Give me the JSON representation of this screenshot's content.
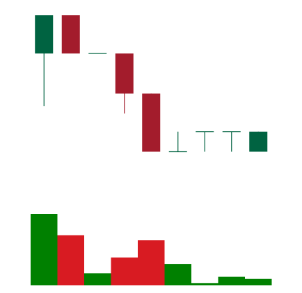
{
  "chart_data": {
    "type": "candlestick",
    "title": "",
    "xlabel": "",
    "ylabel": "",
    "grid": false,
    "legend": "none",
    "ylim": [
      0,
      100
    ],
    "volume_ylim": [
      0,
      100
    ],
    "colors": {
      "up": "#006341",
      "down": "#a31c2c",
      "volume_up": "#008000",
      "volume_down": "#d81b22",
      "background": "#ffffff"
    },
    "candles": [
      {
        "open": 79,
        "high": 100,
        "low": 50,
        "close": 100,
        "volume": 100
      },
      {
        "open": 100,
        "high": 100,
        "low": 79,
        "close": 79,
        "volume": 70
      },
      {
        "open": 79,
        "high": 79,
        "low": 79,
        "close": 79,
        "volume": 17
      },
      {
        "open": 79,
        "high": 79,
        "low": 46,
        "close": 57,
        "volume": 39
      },
      {
        "open": 57,
        "high": 57,
        "low": 25,
        "close": 25,
        "volume": 63
      },
      {
        "open": 25,
        "high": 36,
        "low": 25,
        "close": 25,
        "volume": 30
      },
      {
        "open": 36,
        "high": 36,
        "low": 25,
        "close": 36,
        "volume": 3
      },
      {
        "open": 36,
        "high": 36,
        "low": 25,
        "close": 36,
        "volume": 12
      },
      {
        "open": 25,
        "high": 36,
        "low": 25,
        "close": 36,
        "volume": 9
      }
    ]
  }
}
